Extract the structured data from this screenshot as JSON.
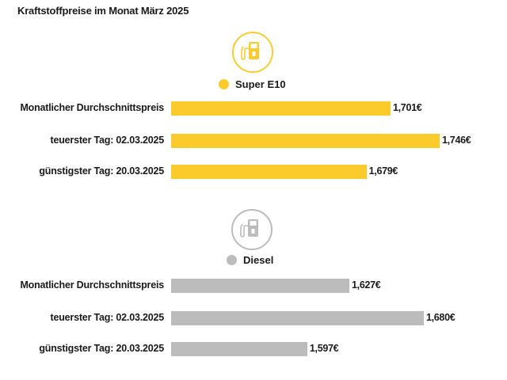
{
  "chart_data": {
    "type": "bar",
    "orientation": "horizontal",
    "title": "Kraftstoffpreise im Monat März 2025",
    "categories": [
      "Monatlicher Durchschnittspreis",
      "teuerster Tag: 02.03.2025",
      "günstigster Tag: 20.03.2025"
    ],
    "series": [
      {
        "name": "Super E10",
        "color": "#FBCB2C",
        "icon": "fuel-pump-icon",
        "values": [
          1.701,
          1.746,
          1.679
        ],
        "labels": [
          "1,701€",
          "1,746€",
          "1,679€"
        ]
      },
      {
        "name": "Diesel",
        "color": "#BDBCBC",
        "icon": "fuel-pump-icon",
        "values": [
          1.627,
          1.68,
          1.597
        ],
        "labels": [
          "1,627€",
          "1,680€",
          "1,597€"
        ]
      }
    ],
    "grid": false
  }
}
